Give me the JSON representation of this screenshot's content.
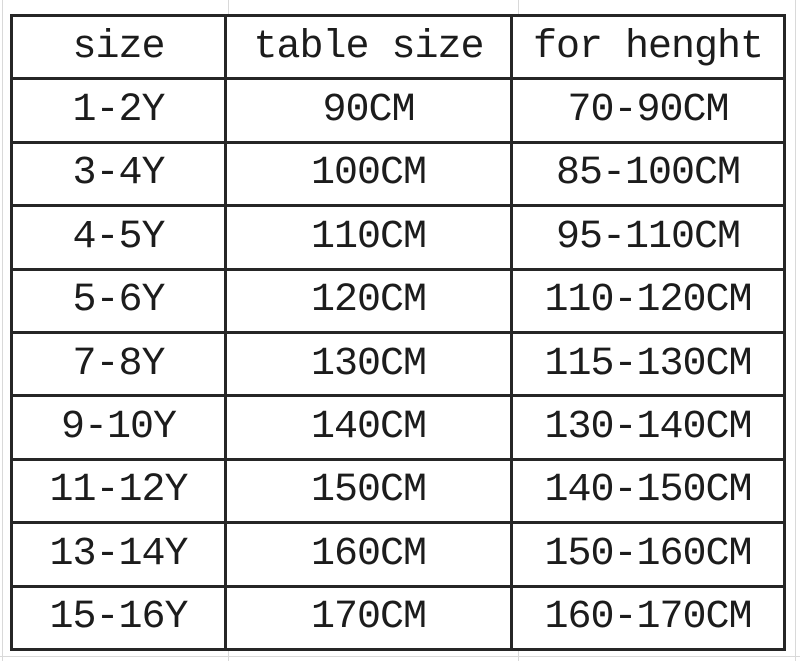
{
  "colors": {
    "table_border": "#262626",
    "text": "#1c1c1c",
    "background": "#ffffff",
    "faint_gridline": "#d9d9d9"
  },
  "chart_data": {
    "type": "table",
    "columns": [
      "size",
      "table size",
      "for henght"
    ],
    "rows": [
      [
        "1-2Y",
        "90CM",
        "70-90CM"
      ],
      [
        "3-4Y",
        "100CM",
        "85-100CM"
      ],
      [
        "4-5Y",
        "110CM",
        "95-110CM"
      ],
      [
        "5-6Y",
        "120CM",
        "110-120CM"
      ],
      [
        "7-8Y",
        "130CM",
        "115-130CM"
      ],
      [
        "9-10Y",
        "140CM",
        "130-140CM"
      ],
      [
        "11-12Y",
        "150CM",
        "140-150CM"
      ],
      [
        "13-14Y",
        "160CM",
        "150-160CM"
      ],
      [
        "15-16Y",
        "170CM",
        "160-170CM"
      ]
    ]
  }
}
